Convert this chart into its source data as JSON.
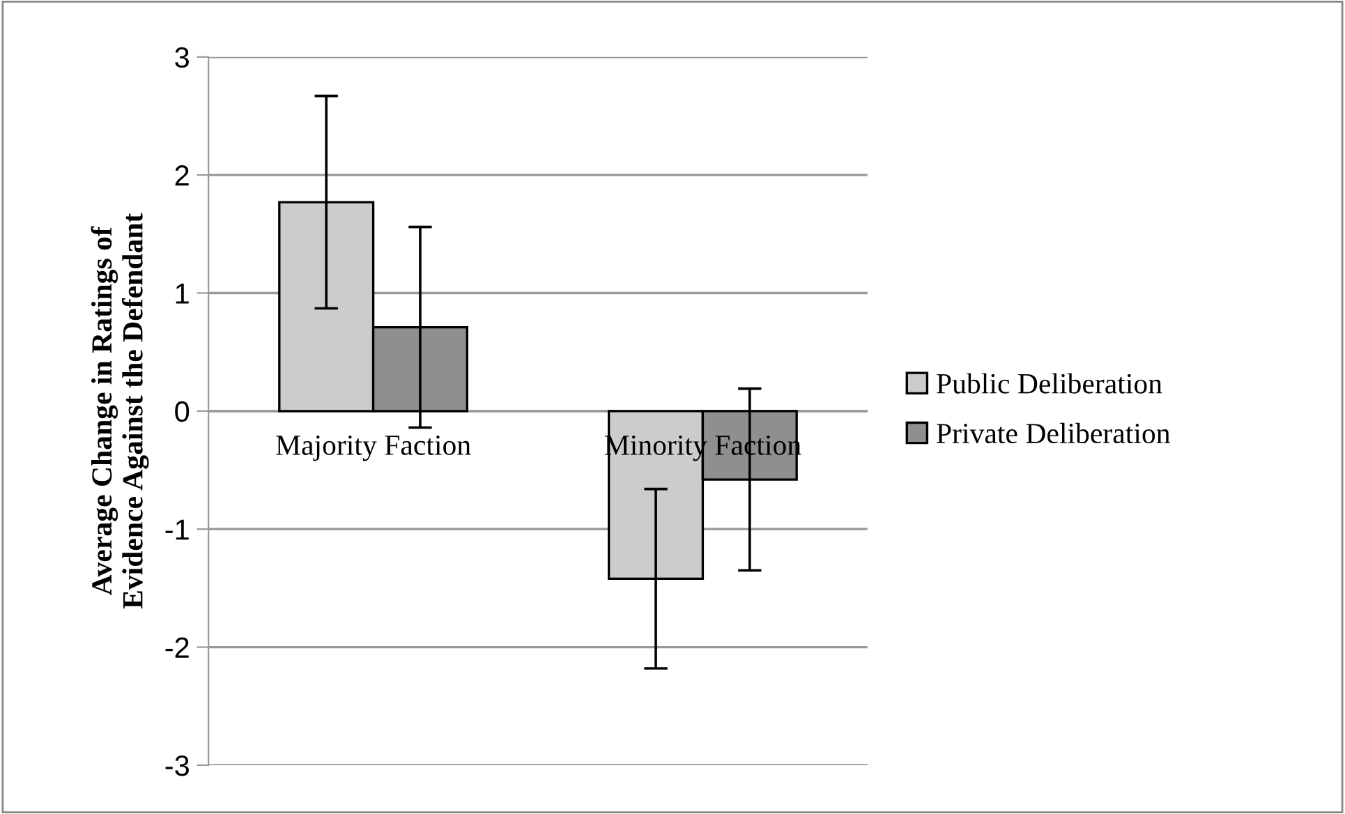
{
  "chart_data": {
    "type": "bar",
    "ylabel": "Average Change in Ratings of\nEvidence Against the Defendant",
    "categories": [
      "Majority Faction",
      "Minority Faction"
    ],
    "series": [
      {
        "name": "Public Deliberation",
        "color": "#cccccc",
        "values": [
          1.77,
          -1.42
        ],
        "errors": [
          0.9,
          0.76
        ]
      },
      {
        "name": "Private Deliberation",
        "color": "#8f8f8f",
        "values": [
          0.71,
          -0.58
        ],
        "errors": [
          0.85,
          0.77
        ]
      }
    ],
    "ylim": [
      -3,
      3
    ],
    "yticks": [
      -3,
      -2,
      -1,
      0,
      1,
      2,
      3
    ],
    "grid": "y",
    "legend": "right"
  }
}
